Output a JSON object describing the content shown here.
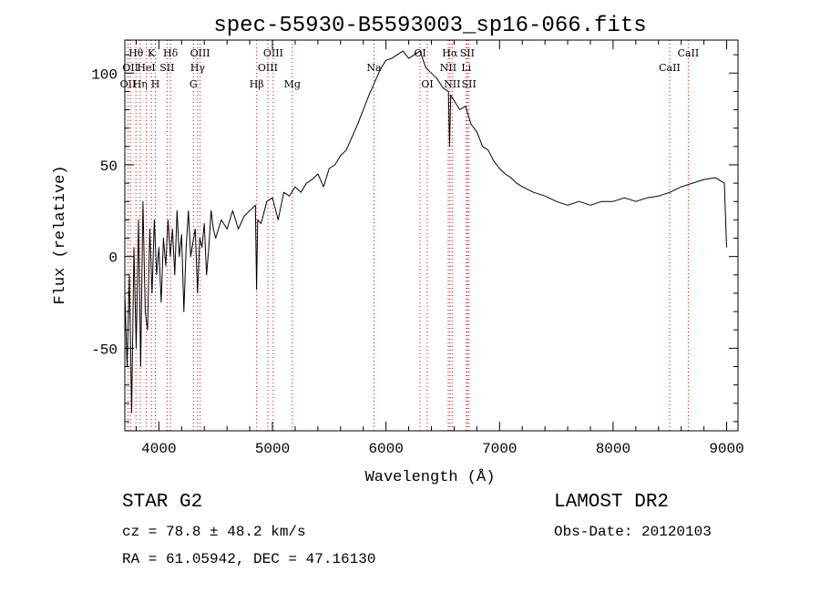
{
  "header": {
    "title": "spec-55930-B5593003_sp16-066.fits"
  },
  "info": {
    "class": "STAR    G2",
    "survey": "LAMOST DR2",
    "redshift": "cz = 78.8 ± 48.2 km/s",
    "obs_date": "Obs-Date: 20120103",
    "radec": "RA =  61.05942, DEC =  47.16130"
  },
  "chart_data": {
    "type": "line",
    "title": "spec-55930-B5593003_sp16-066.fits",
    "xlabel": "Wavelength (Å)",
    "ylabel": "Flux (relative)",
    "xlim": [
      3700,
      9100
    ],
    "ylim": [
      -95,
      118
    ],
    "grid": false,
    "x_ticks": [
      4000,
      5000,
      6000,
      7000,
      8000,
      9000
    ],
    "y_ticks": [
      -50,
      0,
      50,
      100
    ],
    "line_color": "#000000",
    "marker_line_color": "#cc0000",
    "series": [
      {
        "x": [
          3700,
          3720,
          3740,
          3760,
          3780,
          3800,
          3820,
          3840,
          3860,
          3880,
          3900,
          3920,
          3940,
          3960,
          3980,
          4000,
          4020,
          4040,
          4060,
          4080,
          4100,
          4120,
          4140,
          4160,
          4180,
          4200,
          4220,
          4240,
          4260,
          4280,
          4300,
          4320,
          4340,
          4360,
          4380,
          4400,
          4420,
          4440,
          4460,
          4480,
          4500,
          4550,
          4600,
          4650,
          4700,
          4750,
          4800,
          4850,
          4860,
          4870,
          4900,
          4950,
          5000,
          5050,
          5100,
          5150,
          5200,
          5250,
          5300,
          5350,
          5400,
          5450,
          5500,
          5550,
          5600,
          5650,
          5700,
          5750,
          5800,
          5850,
          5900,
          5950,
          6000,
          6050,
          6100,
          6150,
          6200,
          6250,
          6300,
          6350,
          6400,
          6450,
          6500,
          6550,
          6560,
          6570,
          6600,
          6650,
          6700,
          6750,
          6800,
          6850,
          6900,
          6950,
          7000,
          7050,
          7100,
          7150,
          7200,
          7300,
          7400,
          7500,
          7600,
          7700,
          7800,
          7900,
          8000,
          8100,
          8200,
          8300,
          8400,
          8500,
          8600,
          8700,
          8800,
          8900,
          8980,
          9000
        ],
        "y": [
          -20,
          -60,
          -10,
          -85,
          5,
          -50,
          20,
          -60,
          30,
          -30,
          -40,
          15,
          -20,
          20,
          -10,
          5,
          -25,
          10,
          -5,
          20,
          0,
          15,
          -10,
          25,
          0,
          12,
          -30,
          5,
          25,
          0,
          8,
          15,
          -20,
          10,
          5,
          18,
          -10,
          5,
          25,
          15,
          10,
          20,
          15,
          25,
          15,
          22,
          25,
          28,
          -18,
          20,
          18,
          30,
          32,
          20,
          35,
          33,
          38,
          35,
          40,
          42,
          45,
          38,
          48,
          50,
          55,
          58,
          65,
          72,
          80,
          88,
          95,
          102,
          107,
          108,
          110,
          112,
          108,
          110,
          112,
          103,
          100,
          97,
          92,
          90,
          60,
          88,
          85,
          80,
          82,
          72,
          68,
          60,
          58,
          52,
          48,
          45,
          43,
          40,
          38,
          35,
          33,
          30,
          28,
          30,
          28,
          30,
          30,
          32,
          30,
          32,
          33,
          35,
          38,
          40,
          42,
          43,
          40,
          5
        ]
      }
    ],
    "lines": [
      {
        "wave": 3728,
        "label": "OII",
        "row": 3
      },
      {
        "wave": 3750,
        "label": "OII",
        "row": 2
      },
      {
        "wave": 3798,
        "label": "Hθ",
        "row": 1
      },
      {
        "wave": 3835,
        "label": "Hη",
        "row": 3
      },
      {
        "wave": 3889,
        "label": "HeI",
        "row": 2
      },
      {
        "wave": 3934,
        "label": "K",
        "row": 1
      },
      {
        "wave": 3969,
        "label": "H",
        "row": 3
      },
      {
        "wave": 4072,
        "label": "SII",
        "row": 2
      },
      {
        "wave": 4102,
        "label": "Hδ",
        "row": 1
      },
      {
        "wave": 4304,
        "label": "G",
        "row": 3
      },
      {
        "wave": 4341,
        "label": "Hγ",
        "row": 2
      },
      {
        "wave": 4363,
        "label": "OIII",
        "row": 1
      },
      {
        "wave": 4861,
        "label": "Hβ",
        "row": 3
      },
      {
        "wave": 4959,
        "label": "OIII",
        "row": 2
      },
      {
        "wave": 5007,
        "label": "OIII",
        "row": 1
      },
      {
        "wave": 5175,
        "label": "Mg",
        "row": 3
      },
      {
        "wave": 5894,
        "label": "Na",
        "row": 2
      },
      {
        "wave": 6300,
        "label": "OI",
        "row": 1
      },
      {
        "wave": 6364,
        "label": "OI",
        "row": 3
      },
      {
        "wave": 6548,
        "label": "NII",
        "row": 2
      },
      {
        "wave": 6563,
        "label": "Hα",
        "row": 1
      },
      {
        "wave": 6583,
        "label": "NII",
        "row": 3
      },
      {
        "wave": 6707,
        "label": "Li",
        "row": 2
      },
      {
        "wave": 6716,
        "label": "SII",
        "row": 1
      },
      {
        "wave": 6731,
        "label": "SII",
        "row": 3
      },
      {
        "wave": 8498,
        "label": "CaII",
        "row": 2
      },
      {
        "wave": 8662,
        "label": "CaII",
        "row": 1
      }
    ]
  }
}
